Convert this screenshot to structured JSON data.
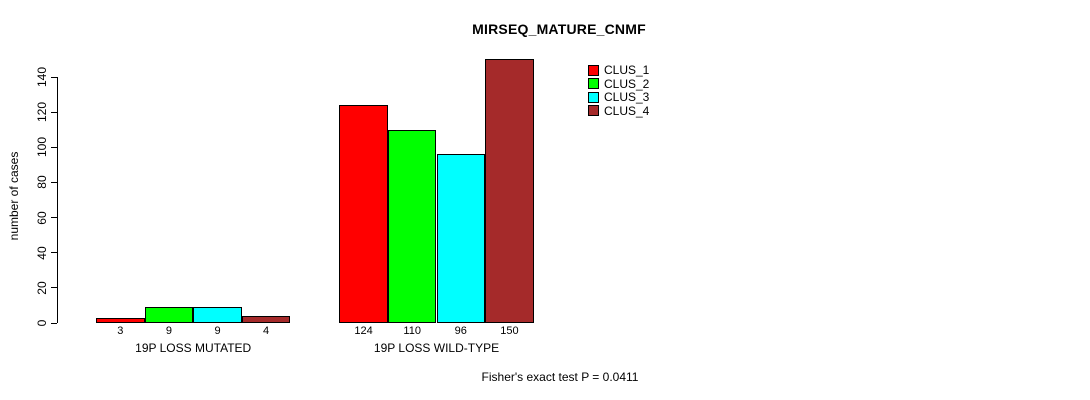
{
  "chart_data": {
    "type": "bar",
    "title": "MIRSEQ_MATURE_CNMF",
    "xlabel": "",
    "ylabel": "number of cases",
    "ylim": [
      0,
      140
    ],
    "yticks": [
      0,
      20,
      40,
      60,
      80,
      100,
      120,
      140
    ],
    "grid": false,
    "legend_position": "top-right",
    "categories": [
      "19P LOSS MUTATED",
      "19P LOSS WILD-TYPE"
    ],
    "series": [
      {
        "name": "CLUS_1",
        "color": "#FF0000",
        "values": [
          3,
          124
        ]
      },
      {
        "name": "CLUS_2",
        "color": "#00FF00",
        "values": [
          9,
          110
        ]
      },
      {
        "name": "CLUS_3",
        "color": "#00FFFF",
        "values": [
          9,
          96
        ]
      },
      {
        "name": "CLUS_4",
        "color": "#A52A2A",
        "values": [
          4,
          150
        ]
      }
    ],
    "bar_value_labels": [
      [
        "3",
        "9",
        "9",
        "4"
      ],
      [
        "124",
        "110",
        "96",
        "150"
      ]
    ],
    "annotation": "Fisher's exact test P = 0.0411"
  }
}
